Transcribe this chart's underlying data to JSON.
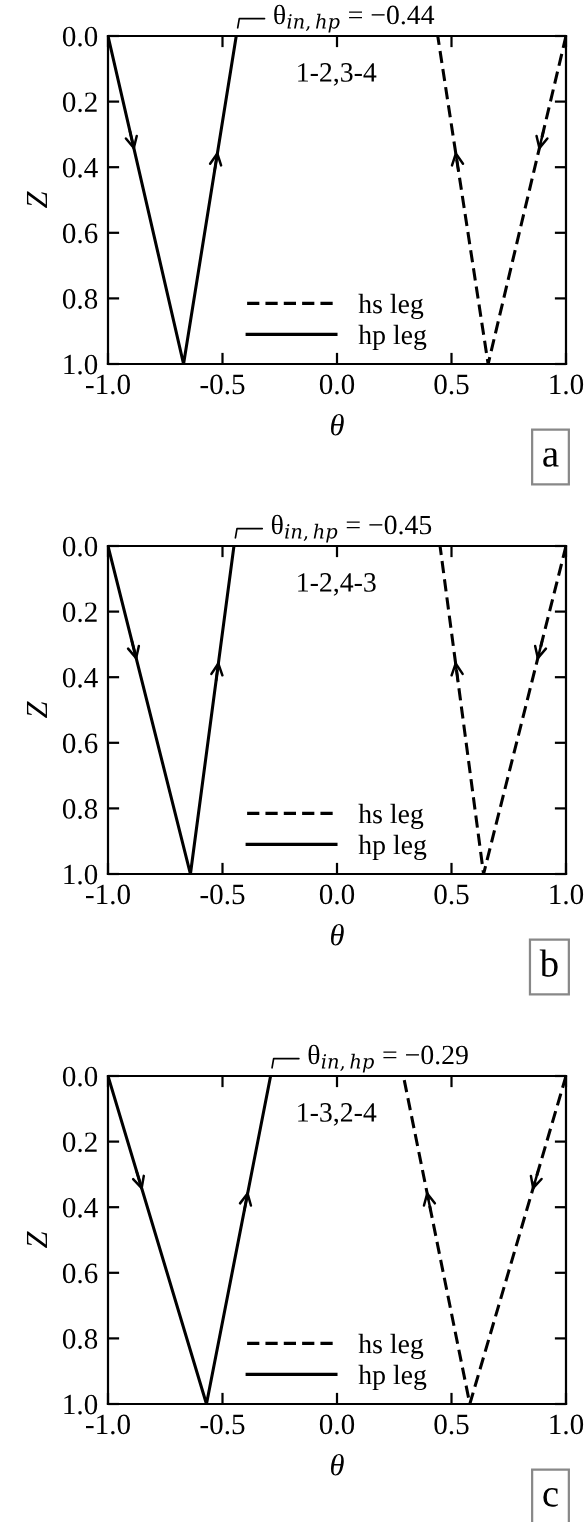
{
  "chart_data": [
    {
      "type": "line",
      "xlabel": "θ",
      "ylabel": "Z",
      "xlim": [
        -1.0,
        1.0
      ],
      "ylim": [
        1.0,
        0.0
      ],
      "xticks": [
        {
          "value": -1.0,
          "label": "-1.0"
        },
        {
          "value": -0.5,
          "label": "-0.5"
        },
        {
          "value": 0.0,
          "label": "0.0"
        },
        {
          "value": 0.5,
          "label": "0.5"
        },
        {
          "value": 1.0,
          "label": "1.0"
        }
      ],
      "yticks": [
        {
          "value": 0.0,
          "label": "0.0"
        },
        {
          "value": 0.2,
          "label": "0.2"
        },
        {
          "value": 0.4,
          "label": "0.4"
        },
        {
          "value": 0.6,
          "label": "0.6"
        },
        {
          "value": 0.8,
          "label": "0.8"
        },
        {
          "value": 1.0,
          "label": "1.0"
        }
      ],
      "series": [
        {
          "name": "hs leg",
          "color": "#000000",
          "line_style": "dashed",
          "x": [
            1.0,
            0.66,
            0.44
          ],
          "values": [
            0.0,
            1.0,
            0.0
          ]
        },
        {
          "name": "hp leg",
          "color": "#000000",
          "line_style": "solid",
          "x": [
            -1.0,
            -0.67,
            -0.44
          ],
          "values": [
            0.0,
            1.0,
            0.0
          ]
        }
      ],
      "annotations": [
        {
          "text": "θ$_{in,hp}$ = −0.44",
          "x": -0.44,
          "y": 0.0
        },
        "1-2,3-4",
        "a"
      ],
      "legend": "bottom",
      "grid": false,
      "marker": "none"
    },
    {
      "type": "line",
      "xlabel": "θ",
      "ylabel": "Z",
      "xlim": [
        -1.0,
        1.0
      ],
      "ylim": [
        1.0,
        0.0
      ],
      "xticks": [
        {
          "value": -1.0,
          "label": "-1.0"
        },
        {
          "value": -0.5,
          "label": "-0.5"
        },
        {
          "value": 0.0,
          "label": "0.0"
        },
        {
          "value": 0.5,
          "label": "0.5"
        },
        {
          "value": 1.0,
          "label": "1.0"
        }
      ],
      "yticks": [
        {
          "value": 0.0,
          "label": "0.0"
        },
        {
          "value": 0.2,
          "label": "0.2"
        },
        {
          "value": 0.4,
          "label": "0.4"
        },
        {
          "value": 0.6,
          "label": "0.6"
        },
        {
          "value": 0.8,
          "label": "0.8"
        },
        {
          "value": 1.0,
          "label": "1.0"
        }
      ],
      "series": [
        {
          "name": "hs leg",
          "color": "#000000",
          "line_style": "dashed",
          "x": [
            1.0,
            0.64,
            0.45
          ],
          "values": [
            0.0,
            1.0,
            0.0
          ]
        },
        {
          "name": "hp leg",
          "color": "#000000",
          "line_style": "solid",
          "x": [
            -1.0,
            -0.64,
            -0.45
          ],
          "values": [
            0.0,
            1.0,
            0.0
          ]
        }
      ],
      "annotations": [
        {
          "text": "θ$_{in,hp}$ = −0.45",
          "x": -0.45,
          "y": 0.0
        },
        "1-2,4-3",
        "b"
      ],
      "legend": "bottom",
      "grid": false,
      "marker": "none"
    },
    {
      "type": "line",
      "xlabel": "θ",
      "ylabel": "Z",
      "xlim": [
        -1.0,
        1.0
      ],
      "ylim": [
        1.0,
        0.0
      ],
      "xticks": [
        {
          "value": -1.0,
          "label": "-1.0"
        },
        {
          "value": -0.5,
          "label": "-0.5"
        },
        {
          "value": 0.0,
          "label": "0.0"
        },
        {
          "value": 0.5,
          "label": "0.5"
        },
        {
          "value": 1.0,
          "label": "1.0"
        }
      ],
      "yticks": [
        {
          "value": 0.0,
          "label": "0.0"
        },
        {
          "value": 0.2,
          "label": "0.2"
        },
        {
          "value": 0.4,
          "label": "0.4"
        },
        {
          "value": 0.6,
          "label": "0.6"
        },
        {
          "value": 0.8,
          "label": "0.8"
        },
        {
          "value": 1.0,
          "label": "1.0"
        }
      ],
      "series": [
        {
          "name": "hs leg",
          "color": "#000000",
          "line_style": "dashed",
          "x": [
            1.0,
            0.58,
            0.29
          ],
          "values": [
            0.0,
            1.0,
            0.0
          ]
        },
        {
          "name": "hp leg",
          "color": "#000000",
          "line_style": "solid",
          "x": [
            -1.0,
            -0.57,
            -0.29
          ],
          "values": [
            0.0,
            1.0,
            0.0
          ]
        }
      ],
      "annotations": [
        {
          "text": "θ$_{in,hp}$ = −0.29",
          "x": -0.29,
          "y": 0.0
        },
        "1-3,2-4",
        "c"
      ],
      "legend": "bottom",
      "grid": false,
      "marker": "none"
    }
  ]
}
